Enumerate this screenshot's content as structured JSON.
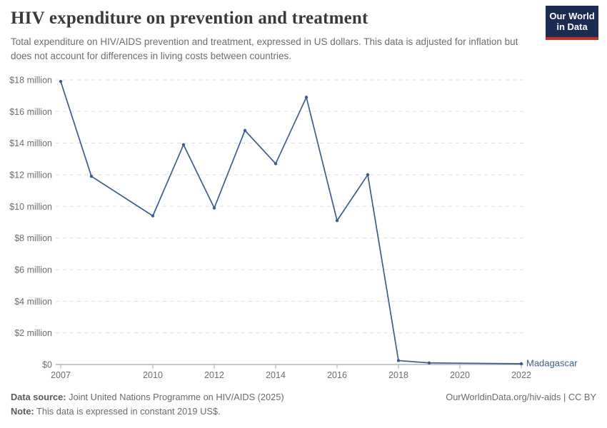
{
  "header": {
    "title": "HIV expenditure on prevention and treatment",
    "subtitle": "Total expenditure on HIV/AIDS prevention and treatment, expressed in US dollars. This data is adjusted for inflation but does not account for differences in living costs between countries."
  },
  "logo": {
    "line1": "Our World",
    "line2": "in Data",
    "bg_color": "#1c2b51",
    "accent_color": "#cf2d24"
  },
  "chart_data": {
    "type": "line",
    "title": "HIV expenditure on prevention and treatment",
    "entity_label": "Madagascar",
    "unit": "constant 2019 US$",
    "x": [
      2007,
      2008,
      2010,
      2011,
      2012,
      2013,
      2014,
      2015,
      2016,
      2017,
      2018,
      2019,
      2022
    ],
    "values_million_usd": [
      17.9,
      11.9,
      9.4,
      13.9,
      9.9,
      14.8,
      12.7,
      16.9,
      9.1,
      12.0,
      0.25,
      0.1,
      0.05
    ],
    "series": [
      {
        "name": "Madagascar",
        "x": [
          2007,
          2008,
          2010,
          2011,
          2012,
          2013,
          2014,
          2015,
          2016,
          2017,
          2018,
          2019,
          2022
        ],
        "values_million_usd": [
          17.9,
          11.9,
          9.4,
          13.9,
          9.9,
          14.8,
          12.7,
          16.9,
          9.1,
          12.0,
          0.25,
          0.1,
          0.05
        ]
      }
    ],
    "xlim": [
      2007,
      2022
    ],
    "ylim_million": [
      0,
      18
    ],
    "x_ticks": [
      2007,
      2010,
      2012,
      2014,
      2016,
      2018,
      2020,
      2022
    ],
    "x_tick_labels": [
      "2007",
      "2010",
      "2012",
      "2014",
      "2016",
      "2018",
      "2020",
      "2022"
    ],
    "y_ticks_million": [
      0,
      2,
      4,
      6,
      8,
      10,
      12,
      14,
      16,
      18
    ],
    "y_tick_labels": [
      "$0",
      "$2 million",
      "$4 million",
      "$6 million",
      "$8 million",
      "$10 million",
      "$12 million",
      "$14 million",
      "$16 million",
      "$18 million"
    ],
    "grid": "horizontal-dashed",
    "legend_position": "end-of-line-label",
    "line_color": "#3d5c96",
    "grid_color": "#dddddd",
    "axis_color": "#a8a8a8",
    "tick_label_color": "#6e6e6e"
  },
  "footer": {
    "datasource_label": "Data source:",
    "datasource_text": " Joint United Nations Programme on HIV/AIDS (2025)",
    "note_label": "Note:",
    "note_text": " This data is expressed in constant 2019 US$.",
    "link_text": "OurWorldinData.org/hiv-aids | CC BY"
  }
}
